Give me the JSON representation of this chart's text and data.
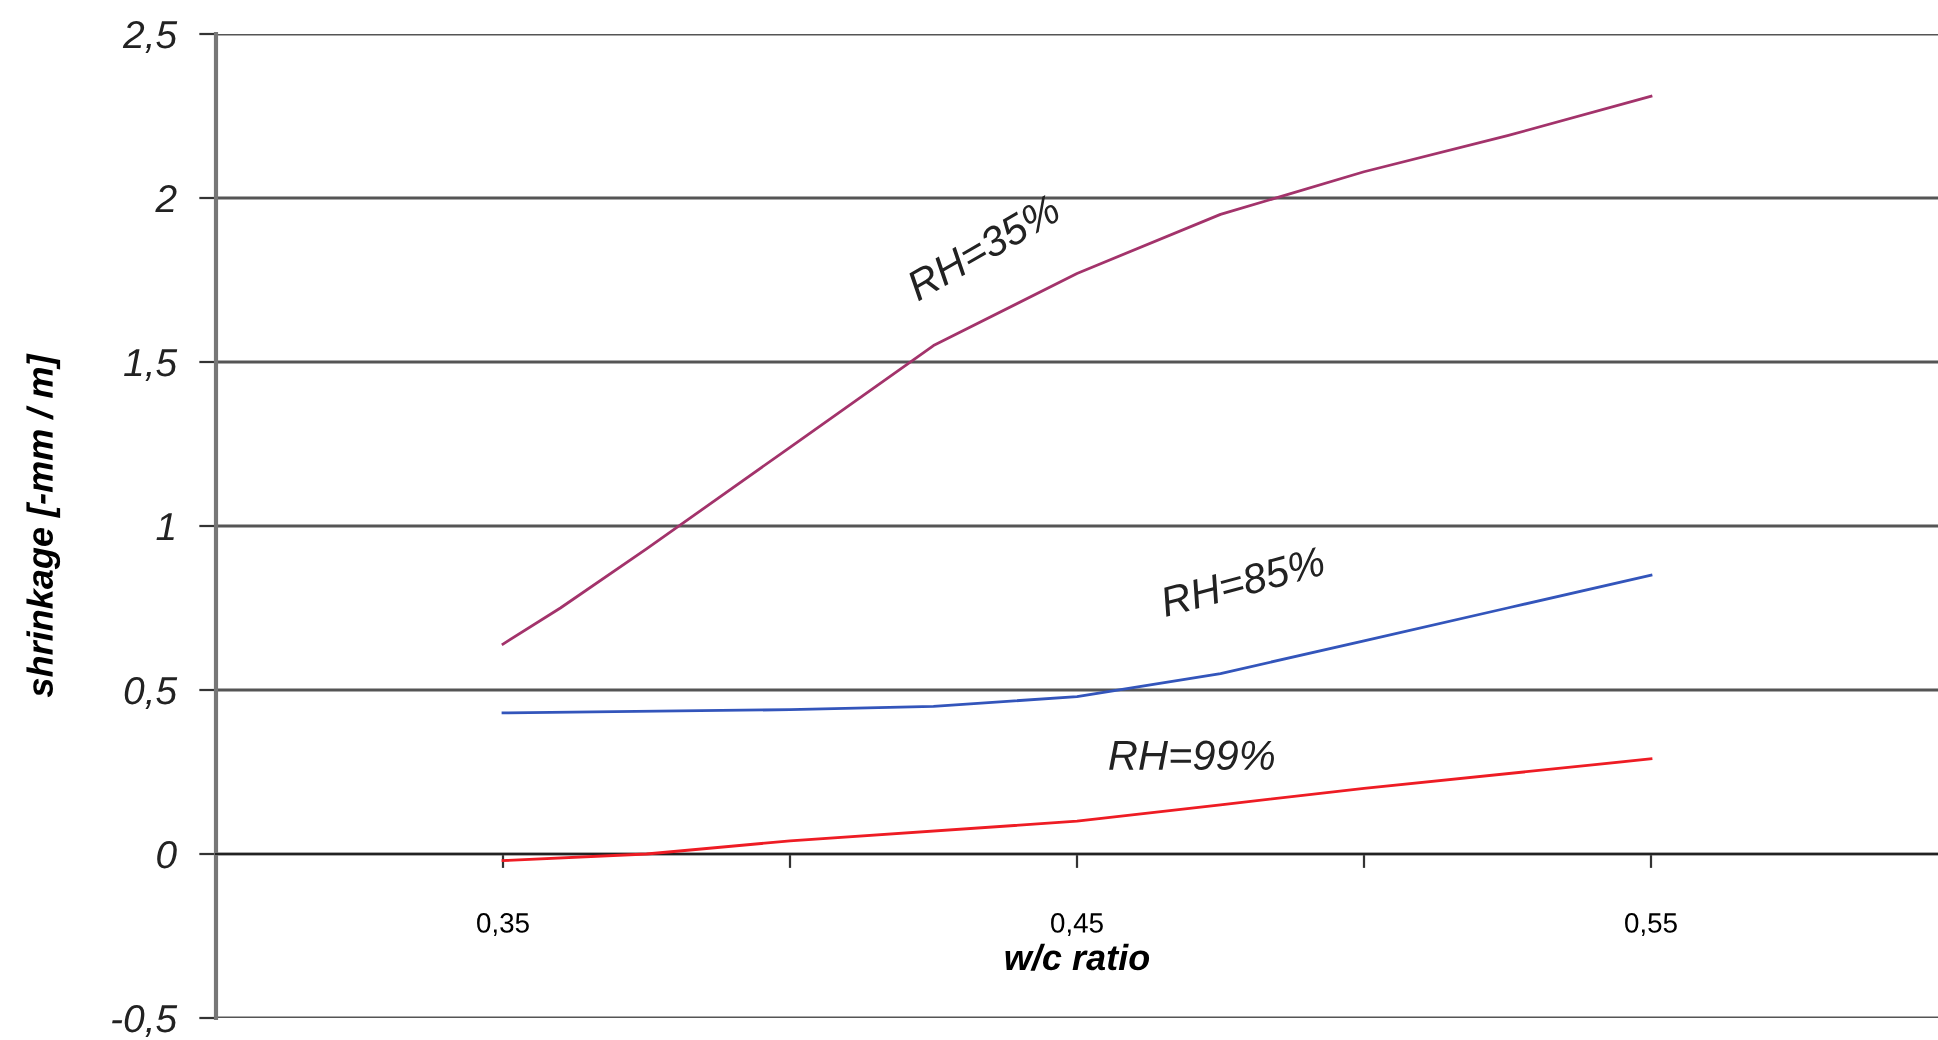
{
  "chart_data": {
    "type": "line",
    "xlabel": "w/c ratio",
    "ylabel": "shrinkage [-mm / m]",
    "xlim": [
      0.3,
      0.6
    ],
    "xticks": [
      {
        "value": 0.35,
        "label": "0,35"
      },
      {
        "value": 0.4,
        "label": null
      },
      {
        "value": 0.45,
        "label": "0,45"
      },
      {
        "value": 0.5,
        "label": null
      },
      {
        "value": 0.55,
        "label": "0,55"
      }
    ],
    "ylim": [
      -0.5,
      2.5
    ],
    "yticks": [
      {
        "value": -0.5,
        "label": "-0,5"
      },
      0,
      {
        "value": 0.5,
        "label": "0,5"
      },
      1,
      {
        "value": 1.5,
        "label": "1,5"
      },
      2,
      {
        "value": 2.5,
        "label": "2,5"
      }
    ],
    "grid": "y",
    "marker": "none",
    "line_style": "solid",
    "legend": false,
    "series": [
      {
        "name": "RH=35%",
        "color": "#a3336b",
        "x": [
          0.35,
          0.36,
          0.375,
          0.4,
          0.425,
          0.45,
          0.475,
          0.5,
          0.525,
          0.55
        ],
        "values": [
          0.64,
          0.75,
          0.93,
          1.24,
          1.55,
          1.77,
          1.95,
          2.08,
          2.19,
          2.31
        ]
      },
      {
        "name": "RH=85%",
        "color": "#3355bb",
        "x": [
          0.35,
          0.4,
          0.425,
          0.45,
          0.475,
          0.5,
          0.525,
          0.55
        ],
        "values": [
          0.43,
          0.44,
          0.45,
          0.48,
          0.55,
          0.65,
          0.75,
          0.85
        ]
      },
      {
        "name": "RH=99%",
        "color": "#ee1c24",
        "x": [
          0.35,
          0.375,
          0.4,
          0.45,
          0.475,
          0.5,
          0.55
        ],
        "values": [
          -0.02,
          0.0,
          0.04,
          0.1,
          0.15,
          0.2,
          0.29
        ]
      }
    ]
  }
}
